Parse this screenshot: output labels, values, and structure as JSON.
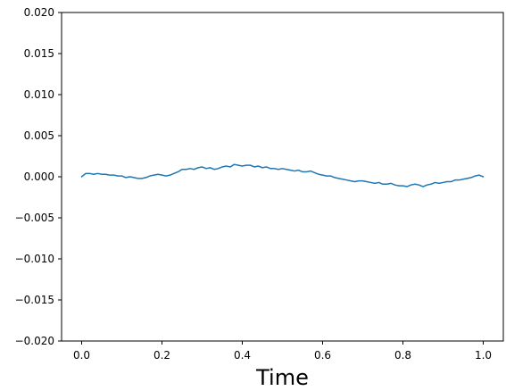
{
  "chart_data": {
    "type": "line",
    "title": "",
    "xlabel": "Time",
    "ylabel": "",
    "xlim": [
      -0.05,
      1.05
    ],
    "ylim": [
      -0.02,
      0.02
    ],
    "x_ticks": [
      0.0,
      0.2,
      0.4,
      0.6,
      0.8,
      1.0
    ],
    "x_tick_labels": [
      "0.0",
      "0.2",
      "0.4",
      "0.6",
      "0.8",
      "1.0"
    ],
    "y_ticks": [
      -0.02,
      -0.015,
      -0.01,
      -0.005,
      0.0,
      0.005,
      0.01,
      0.015,
      0.02
    ],
    "y_tick_labels": [
      "−0.020",
      "−0.015",
      "−0.010",
      "−0.005",
      "0.000",
      "0.005",
      "0.010",
      "0.015",
      "0.020"
    ],
    "grid": false,
    "legend": "none",
    "line_color": "#1f77b4",
    "series": [
      {
        "x": [
          0.0,
          0.01,
          0.02,
          0.03,
          0.04,
          0.05,
          0.06,
          0.07,
          0.08,
          0.09,
          0.1,
          0.11,
          0.12,
          0.13,
          0.14,
          0.15,
          0.16,
          0.17,
          0.18,
          0.19,
          0.2,
          0.21,
          0.22,
          0.23,
          0.24,
          0.25,
          0.26,
          0.27,
          0.28,
          0.29,
          0.3,
          0.31,
          0.32,
          0.33,
          0.34,
          0.35,
          0.36,
          0.37,
          0.38,
          0.39,
          0.4,
          0.41,
          0.42,
          0.43,
          0.44,
          0.45,
          0.46,
          0.47,
          0.48,
          0.49,
          0.5,
          0.51,
          0.52,
          0.53,
          0.54,
          0.55,
          0.56,
          0.57,
          0.58,
          0.59,
          0.6,
          0.61,
          0.62,
          0.63,
          0.64,
          0.65,
          0.66,
          0.67,
          0.68,
          0.69,
          0.7,
          0.71,
          0.72,
          0.73,
          0.74,
          0.75,
          0.76,
          0.77,
          0.78,
          0.79,
          0.8,
          0.81,
          0.82,
          0.83,
          0.84,
          0.85,
          0.86,
          0.87,
          0.88,
          0.89,
          0.9,
          0.91,
          0.92,
          0.93,
          0.94,
          0.95,
          0.96,
          0.97,
          0.98,
          0.99,
          1.0
        ],
        "y": [
          0.0,
          0.0004,
          0.0004,
          0.0003,
          0.0004,
          0.0003,
          0.0003,
          0.0002,
          0.0002,
          0.0001,
          0.0001,
          -0.0001,
          0.0,
          -0.0001,
          -0.0002,
          -0.0002,
          -0.0001,
          0.0001,
          0.0002,
          0.0003,
          0.0002,
          0.0001,
          0.0002,
          0.0004,
          0.0006,
          0.0009,
          0.0009,
          0.001,
          0.0009,
          0.0011,
          0.0012,
          0.001,
          0.0011,
          0.0009,
          0.001,
          0.0012,
          0.0013,
          0.0012,
          0.0015,
          0.0014,
          0.0013,
          0.0014,
          0.0014,
          0.0012,
          0.0013,
          0.0011,
          0.0012,
          0.001,
          0.001,
          0.0009,
          0.001,
          0.0009,
          0.0008,
          0.0007,
          0.0008,
          0.0006,
          0.0006,
          0.0007,
          0.0005,
          0.0003,
          0.0002,
          0.0001,
          0.0001,
          -0.0001,
          -0.0002,
          -0.0003,
          -0.0004,
          -0.0005,
          -0.0006,
          -0.0005,
          -0.0005,
          -0.0006,
          -0.0007,
          -0.0008,
          -0.0007,
          -0.0009,
          -0.0009,
          -0.0008,
          -0.001,
          -0.0011,
          -0.0011,
          -0.0012,
          -0.001,
          -0.0009,
          -0.001,
          -0.0012,
          -0.001,
          -0.0009,
          -0.0007,
          -0.0008,
          -0.0007,
          -0.0006,
          -0.0006,
          -0.0004,
          -0.0004,
          -0.0003,
          -0.0002,
          -0.0001,
          0.0001,
          0.0002,
          0.0
        ]
      }
    ]
  }
}
